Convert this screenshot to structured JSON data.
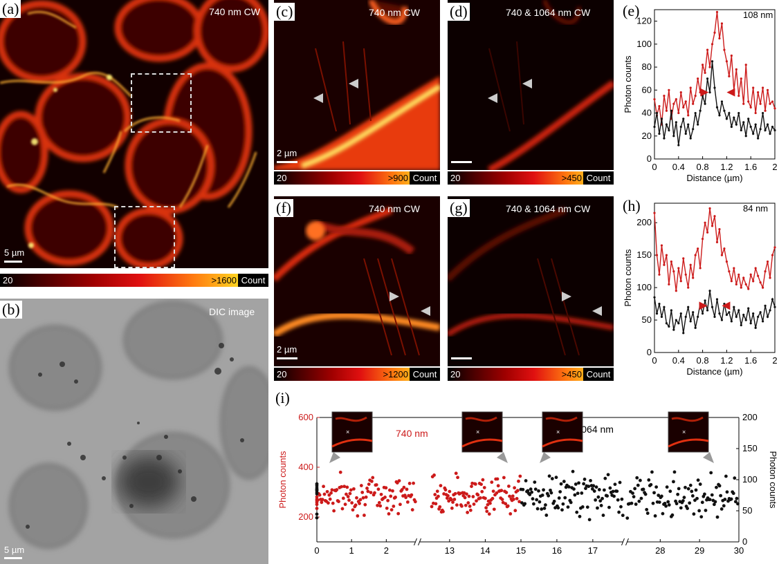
{
  "figure": {
    "panel_a": {
      "label": "(a)",
      "title": "740 nm CW",
      "scale": "5 µm",
      "colorbar": {
        "min": "20",
        "max": ">1600",
        "unit": "Count"
      }
    },
    "panel_b": {
      "label": "(b)",
      "title": "DIC image",
      "scale": "5 µm"
    },
    "panel_c": {
      "label": "(c)",
      "title": "740 nm CW",
      "scale": "2 µm",
      "colorbar": {
        "min": "20",
        "max": ">900",
        "unit": "Count"
      }
    },
    "panel_d": {
      "label": "(d)",
      "title": "740 & 1064 nm CW",
      "colorbar": {
        "min": "20",
        "max": ">450",
        "unit": "Count"
      }
    },
    "panel_f": {
      "label": "(f)",
      "title": "740 nm CW",
      "scale": "2 µm",
      "colorbar": {
        "min": "20",
        "max": ">1200",
        "unit": "Count"
      }
    },
    "panel_g": {
      "label": "(g)",
      "title": "740 & 1064 nm CW",
      "colorbar": {
        "min": "20",
        "max": ">450",
        "unit": "Count"
      }
    },
    "panel_e": {
      "label": "(e)",
      "annotation": "108 nm"
    },
    "panel_h": {
      "label": "(h)",
      "annotation": "84 nm"
    },
    "panel_i": {
      "label": "(i)",
      "legend_red": "740 nm",
      "legend_black": "740 & 1064 nm"
    }
  },
  "colors": {
    "red": "#cc1a1a",
    "black": "#111111",
    "gray_arrow": "#999999"
  },
  "chart_data": [
    {
      "id": "e",
      "type": "line",
      "xlabel": "Distance (µm)",
      "ylabel": "Photon counts",
      "xlim": [
        0,
        2
      ],
      "ylim": [
        0,
        130
      ],
      "xticks": [
        0,
        0.4,
        0.8,
        1.2,
        1.6,
        2
      ],
      "xtick_labels": [
        "0",
        "0.4",
        "0.8",
        "1.2",
        "1.6",
        "2"
      ],
      "yticks": [
        0,
        20,
        40,
        60,
        80,
        100,
        120
      ],
      "series": [
        {
          "color": "#cc1a1a",
          "x": [
            0,
            0.04,
            0.08,
            0.12,
            0.16,
            0.2,
            0.24,
            0.28,
            0.32,
            0.36,
            0.4,
            0.44,
            0.48,
            0.52,
            0.56,
            0.6,
            0.64,
            0.68,
            0.72,
            0.76,
            0.8,
            0.84,
            0.88,
            0.92,
            0.96,
            1.0,
            1.04,
            1.08,
            1.12,
            1.16,
            1.2,
            1.24,
            1.28,
            1.32,
            1.36,
            1.4,
            1.44,
            1.48,
            1.52,
            1.56,
            1.6,
            1.64,
            1.68,
            1.72,
            1.76,
            1.8,
            1.84,
            1.88,
            1.92,
            1.96,
            2.0
          ],
          "y": [
            52,
            38,
            46,
            30,
            55,
            42,
            60,
            35,
            48,
            52,
            40,
            58,
            45,
            50,
            38,
            62,
            48,
            55,
            70,
            58,
            82,
            75,
            95,
            80,
            100,
            110,
            128,
            105,
            118,
            95,
            85,
            72,
            90,
            60,
            78,
            55,
            70,
            48,
            82,
            50,
            45,
            62,
            40,
            58,
            48,
            62,
            42,
            60,
            48,
            50,
            44
          ]
        },
        {
          "color": "#111111",
          "x": [
            0,
            0.04,
            0.08,
            0.12,
            0.16,
            0.2,
            0.24,
            0.28,
            0.32,
            0.36,
            0.4,
            0.44,
            0.48,
            0.52,
            0.56,
            0.6,
            0.64,
            0.68,
            0.72,
            0.76,
            0.8,
            0.84,
            0.88,
            0.92,
            0.96,
            1.0,
            1.04,
            1.08,
            1.12,
            1.16,
            1.2,
            1.24,
            1.28,
            1.32,
            1.36,
            1.4,
            1.44,
            1.48,
            1.52,
            1.56,
            1.6,
            1.64,
            1.68,
            1.72,
            1.76,
            1.8,
            1.84,
            1.88,
            1.92,
            1.96,
            2.0
          ],
          "y": [
            28,
            40,
            22,
            35,
            18,
            30,
            25,
            42,
            20,
            32,
            12,
            28,
            35,
            22,
            30,
            18,
            26,
            40,
            30,
            42,
            55,
            48,
            70,
            58,
            85,
            62,
            45,
            38,
            50,
            42,
            35,
            40,
            28,
            36,
            30,
            40,
            25,
            32,
            20,
            35,
            28,
            22,
            30,
            18,
            26,
            40,
            25,
            30,
            22,
            28,
            25
          ]
        }
      ]
    },
    {
      "id": "h",
      "type": "line",
      "xlabel": "Distance (µm)",
      "ylabel": "Photon counts",
      "xlim": [
        0,
        2
      ],
      "ylim": [
        0,
        230
      ],
      "xticks": [
        0,
        0.4,
        0.8,
        1.2,
        1.6,
        2
      ],
      "xtick_labels": [
        "0",
        "0.4",
        "0.8",
        "1.2",
        "1.6",
        "2"
      ],
      "yticks": [
        0,
        50,
        100,
        150,
        200
      ],
      "series": [
        {
          "color": "#cc1a1a",
          "x": [
            0,
            0.04,
            0.08,
            0.12,
            0.16,
            0.2,
            0.24,
            0.28,
            0.32,
            0.36,
            0.4,
            0.44,
            0.48,
            0.52,
            0.56,
            0.6,
            0.64,
            0.68,
            0.72,
            0.76,
            0.8,
            0.84,
            0.88,
            0.92,
            0.96,
            1.0,
            1.04,
            1.08,
            1.12,
            1.16,
            1.2,
            1.24,
            1.28,
            1.32,
            1.36,
            1.4,
            1.44,
            1.48,
            1.52,
            1.56,
            1.6,
            1.64,
            1.68,
            1.72,
            1.76,
            1.8,
            1.84,
            1.88,
            1.92,
            1.96,
            2.0
          ],
          "y": [
            215,
            150,
            120,
            165,
            135,
            150,
            105,
            140,
            125,
            95,
            130,
            110,
            145,
            120,
            100,
            135,
            115,
            150,
            160,
            130,
            175,
            200,
            185,
            222,
            195,
            210,
            170,
            190,
            150,
            160,
            140,
            125,
            110,
            130,
            105,
            120,
            100,
            115,
            105,
            98,
            120,
            110,
            130,
            118,
            108,
            100,
            125,
            140,
            115,
            150,
            162
          ]
        },
        {
          "color": "#111111",
          "x": [
            0,
            0.04,
            0.08,
            0.12,
            0.16,
            0.2,
            0.24,
            0.28,
            0.32,
            0.36,
            0.4,
            0.44,
            0.48,
            0.52,
            0.56,
            0.6,
            0.64,
            0.68,
            0.72,
            0.76,
            0.8,
            0.84,
            0.88,
            0.92,
            0.96,
            1.0,
            1.04,
            1.08,
            1.12,
            1.16,
            1.2,
            1.24,
            1.28,
            1.32,
            1.36,
            1.4,
            1.44,
            1.48,
            1.52,
            1.56,
            1.6,
            1.64,
            1.68,
            1.72,
            1.76,
            1.8,
            1.84,
            1.88,
            1.92,
            1.96,
            2.0
          ],
          "y": [
            85,
            60,
            75,
            55,
            70,
            45,
            40,
            65,
            35,
            50,
            45,
            60,
            30,
            55,
            70,
            48,
            62,
            38,
            55,
            75,
            60,
            80,
            65,
            95,
            70,
            55,
            82,
            60,
            50,
            75,
            58,
            62,
            48,
            70,
            55,
            65,
            42,
            58,
            50,
            68,
            45,
            60,
            38,
            55,
            62,
            48,
            72,
            55,
            65,
            82,
            70
          ]
        }
      ]
    },
    {
      "id": "i",
      "type": "scatter",
      "ylabel": "Photon counts",
      "ylabel_right": "Photon counts",
      "ylim": [
        100,
        600
      ],
      "ylim_right": [
        0,
        200
      ],
      "yticks": [
        200,
        400,
        600
      ],
      "yticks_right": [
        0,
        50,
        100,
        150,
        200
      ],
      "xtick_labels": [
        "0",
        "1",
        "2",
        "13",
        "14",
        "15",
        "16",
        "17",
        "28",
        "29",
        "30"
      ],
      "segments": [
        {
          "color": "#cc1a1a",
          "x_range": [
            0,
            3
          ],
          "mean": 290,
          "spread": 55
        },
        {
          "color": "#cc1a1a",
          "x_range": [
            12.5,
            15
          ],
          "mean": 290,
          "spread": 55
        },
        {
          "color": "#111111",
          "x_range": [
            15,
            18
          ],
          "mean": 75,
          "spread": 25
        },
        {
          "color": "#111111",
          "x_range": [
            27,
            30
          ],
          "mean": 75,
          "spread": 25
        }
      ]
    }
  ]
}
